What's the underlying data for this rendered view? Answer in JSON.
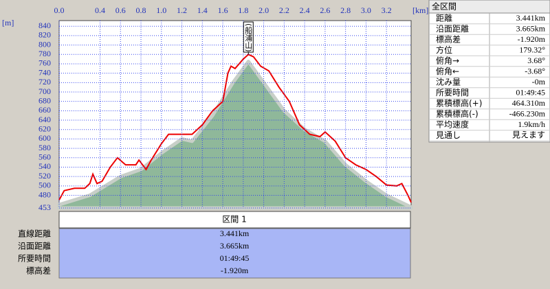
{
  "chart_data": {
    "type": "line",
    "x_unit": "[km]",
    "y_unit": "[m]",
    "xlim": [
      0,
      3.441
    ],
    "xticks": [
      {
        "value": 0,
        "label": "0.0"
      },
      0.4,
      0.6,
      0.8,
      {
        "value": 1,
        "label": "1.0"
      },
      1.2,
      1.4,
      1.6,
      1.8,
      {
        "value": 2,
        "label": "2.0"
      },
      2.2,
      2.4,
      2.6,
      2.8,
      {
        "value": 3,
        "label": "3.0"
      },
      3.2
    ],
    "ylim": [
      453,
      852
    ],
    "yticks": [
      453,
      480,
      500,
      520,
      540,
      560,
      580,
      600,
      620,
      640,
      660,
      680,
      700,
      720,
      740,
      760,
      780,
      800,
      820,
      840
    ],
    "grid": true,
    "series": [
      {
        "fill": true,
        "color": "#8fb89a",
        "x": [
          0,
          0.3,
          0.6,
          0.8,
          1.0,
          1.2,
          1.3,
          1.5,
          1.7,
          1.85,
          2.0,
          2.2,
          2.4,
          2.6,
          2.8,
          3.0,
          3.2,
          3.441
        ],
        "values": [
          460,
          480,
          520,
          535,
          570,
          600,
          595,
          650,
          720,
          765,
          720,
          660,
          620,
          595,
          545,
          510,
          480,
          455
        ]
      },
      {
        "fill": false,
        "color": "#ee0000",
        "x": [
          0,
          0.05,
          0.15,
          0.25,
          0.3,
          0.33,
          0.37,
          0.42,
          0.5,
          0.57,
          0.65,
          0.75,
          0.78,
          0.85,
          0.9,
          1.0,
          1.07,
          1.2,
          1.3,
          1.4,
          1.5,
          1.6,
          1.65,
          1.68,
          1.72,
          1.8,
          1.85,
          1.9,
          1.97,
          2.05,
          2.15,
          2.25,
          2.35,
          2.45,
          2.55,
          2.6,
          2.7,
          2.8,
          2.9,
          3.0,
          3.1,
          3.2,
          3.3,
          3.35,
          3.41,
          3.441
        ],
        "values": [
          470,
          490,
          495,
          495,
          505,
          525,
          505,
          510,
          540,
          560,
          545,
          545,
          555,
          535,
          555,
          590,
          610,
          610,
          610,
          630,
          660,
          680,
          740,
          755,
          750,
          770,
          780,
          775,
          755,
          745,
          710,
          680,
          630,
          610,
          605,
          615,
          595,
          560,
          545,
          535,
          520,
          502,
          500,
          505,
          480,
          465
        ]
      }
    ],
    "annotations": [
      {
        "text": "(船浦山)",
        "x": 1.85,
        "y": 780
      }
    ]
  },
  "summary": {
    "title": "全区間",
    "rows": [
      [
        "距離",
        "3.441km"
      ],
      [
        "沿面距離",
        "3.665km"
      ],
      [
        "標高差",
        "-1.920m"
      ],
      [
        "方位",
        "179.32°"
      ],
      [
        "俯角→",
        "3.68°"
      ],
      [
        "俯角←",
        "-3.68°"
      ],
      [
        "沈み量",
        "-0m"
      ],
      [
        "所要時間",
        "01:49:45"
      ],
      [
        "累積標高(+)",
        "464.310m"
      ],
      [
        "累積標高(-)",
        "-466.230m"
      ],
      [
        "平均速度",
        "1.9km/h"
      ],
      [
        "見通し",
        "見えます"
      ]
    ]
  },
  "section": {
    "title": "区間 1",
    "rows": [
      [
        "直線距離",
        "3.441km"
      ],
      [
        "沿面距離",
        "3.665km"
      ],
      [
        "所要時間",
        "01:49:45"
      ],
      [
        "標高差",
        "-1.920m"
      ]
    ]
  }
}
